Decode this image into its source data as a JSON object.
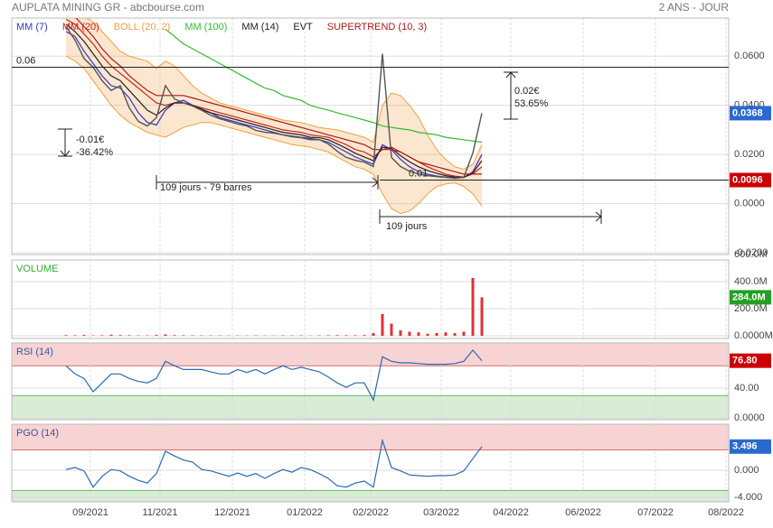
{
  "header": {
    "title": "AUPLATA MINING GR - abcbourse.com",
    "period": "2 ANS - JOUR"
  },
  "chart_data": [
    {
      "type": "line",
      "x": [
        6,
        7,
        8,
        9,
        10,
        11,
        12,
        13,
        14,
        15,
        16,
        17,
        18,
        19,
        20,
        21,
        22,
        23,
        24,
        25,
        26,
        27,
        28,
        29,
        30,
        31,
        32,
        33,
        34,
        35,
        36,
        37,
        38,
        39,
        40,
        41,
        42,
        43,
        44,
        45,
        46,
        47,
        48,
        49,
        50,
        51,
        52
      ],
      "xlim": [
        0,
        79.3
      ],
      "xticks": [
        {
          "value": 8.7,
          "label": "09/2021"
        },
        {
          "value": 16.4,
          "label": "11/2021"
        },
        {
          "value": 24.4,
          "label": "12/2021"
        },
        {
          "value": 32.4,
          "label": "01/2022"
        },
        {
          "value": 39.7,
          "label": "02/2022"
        },
        {
          "value": 47.5,
          "label": "03/2022"
        },
        {
          "value": 55.2,
          "label": "04/2022"
        },
        {
          "value": 63.2,
          "label": "06/2022"
        },
        {
          "value": 71.2,
          "label": "07/2022"
        },
        {
          "value": 79.0,
          "label": "08/2022"
        }
      ],
      "ylim": [
        -0.0207,
        0.0755
      ],
      "yticks": [
        {
          "value": 0.06,
          "label": "0.0600"
        },
        {
          "value": 0.04,
          "label": "0.0400"
        },
        {
          "value": 0.02,
          "label": "0.0200"
        },
        {
          "value": 0,
          "label": "0.0000"
        },
        {
          "value": -0.02,
          "label": "-0.0200"
        }
      ],
      "grid": true,
      "close": [
        0.072,
        0.0665,
        0.059,
        0.0555,
        0.05,
        0.046,
        0.048,
        0.039,
        0.0335,
        0.0316,
        0.035,
        0.048,
        0.0426,
        0.041,
        0.0397,
        0.038,
        0.036,
        0.0346,
        0.0335,
        0.0324,
        0.0316,
        0.0298,
        0.029,
        0.0287,
        0.028,
        0.0272,
        0.0268,
        0.026,
        0.026,
        0.0243,
        0.0213,
        0.0188,
        0.0176,
        0.0169,
        0.0151,
        0.061,
        0.0188,
        0.0151,
        0.0132,
        0.0121,
        0.0114,
        0.011,
        0.0107,
        0.0103,
        0.0107,
        0.0206,
        0.0368
      ],
      "close_color": "#555555",
      "badge_color": "#2a6ad0",
      "series": [
        {
          "name": "MM (7)",
          "color": "#3333cc",
          "values": [
            0.07,
            0.068,
            0.062,
            0.057,
            0.052,
            0.048,
            0.047,
            0.043,
            0.037,
            0.033,
            0.032,
            0.038,
            0.041,
            0.042,
            0.04,
            0.038,
            0.037,
            0.035,
            0.034,
            0.033,
            0.032,
            0.031,
            0.03,
            0.029,
            0.028,
            0.0275,
            0.027,
            0.0265,
            0.026,
            0.025,
            0.023,
            0.021,
            0.019,
            0.0175,
            0.016,
            0.024,
            0.022,
            0.018,
            0.015,
            0.013,
            0.012,
            0.0112,
            0.0108,
            0.0105,
            0.0106,
            0.013,
            0.02
          ]
        },
        {
          "name": "MM (20)",
          "color": "#cc2222",
          "values": [
            0.075,
            0.073,
            0.069,
            0.065,
            0.06,
            0.056,
            0.053,
            0.05,
            0.047,
            0.044,
            0.041,
            0.04,
            0.041,
            0.041,
            0.04,
            0.039,
            0.038,
            0.037,
            0.036,
            0.035,
            0.034,
            0.033,
            0.032,
            0.031,
            0.03,
            0.0295,
            0.029,
            0.028,
            0.0275,
            0.027,
            0.0255,
            0.024,
            0.022,
            0.021,
            0.019,
            0.022,
            0.023,
            0.021,
            0.019,
            0.017,
            0.015,
            0.0135,
            0.012,
            0.0112,
            0.0108,
            0.012,
            0.015
          ]
        },
        {
          "name": "BOLL (20, 2)",
          "color": "#f0a040",
          "upper": [
            0.078,
            0.078,
            0.076,
            0.074,
            0.07,
            0.066,
            0.062,
            0.06,
            0.059,
            0.058,
            0.055,
            0.058,
            0.056,
            0.052,
            0.048,
            0.045,
            0.043,
            0.041,
            0.04,
            0.039,
            0.038,
            0.037,
            0.036,
            0.035,
            0.034,
            0.0335,
            0.033,
            0.032,
            0.031,
            0.0305,
            0.03,
            0.029,
            0.028,
            0.027,
            0.025,
            0.04,
            0.045,
            0.044,
            0.04,
            0.035,
            0.028,
            0.022,
            0.018,
            0.015,
            0.014,
            0.016,
            0.024
          ],
          "lower": [
            0.06,
            0.058,
            0.055,
            0.05,
            0.045,
            0.04,
            0.036,
            0.033,
            0.031,
            0.029,
            0.028,
            0.027,
            0.029,
            0.031,
            0.032,
            0.033,
            0.033,
            0.032,
            0.031,
            0.03,
            0.029,
            0.028,
            0.027,
            0.026,
            0.025,
            0.024,
            0.0235,
            0.023,
            0.022,
            0.021,
            0.019,
            0.017,
            0.015,
            0.014,
            0.012,
            0.004,
            -0.002,
            -0.004,
            -0.003,
            0,
            0.004,
            0.007,
            0.008,
            0.0085,
            0.007,
            0.004,
            -0.001
          ]
        },
        {
          "name": "MM (100)",
          "color": "#33bb33",
          "values": [
            null,
            null,
            null,
            null,
            null,
            null,
            null,
            null,
            null,
            null,
            null,
            0.071,
            0.068,
            0.065,
            0.063,
            0.061,
            0.059,
            0.057,
            0.055,
            0.053,
            0.051,
            0.049,
            0.047,
            0.046,
            0.044,
            0.043,
            0.042,
            0.04,
            0.039,
            0.038,
            0.037,
            0.036,
            0.035,
            0.034,
            0.033,
            0.0316,
            0.031,
            0.0305,
            0.03,
            0.029,
            0.0285,
            0.028,
            0.027,
            0.0265,
            0.026,
            0.0255,
            0.025
          ]
        },
        {
          "name": "MM (14)",
          "color": "#222222",
          "values": [
            0.073,
            0.07,
            0.066,
            0.061,
            0.056,
            0.052,
            0.05,
            0.046,
            0.042,
            0.038,
            0.036,
            0.039,
            0.041,
            0.041,
            0.04,
            0.0385,
            0.037,
            0.036,
            0.035,
            0.034,
            0.033,
            0.032,
            0.031,
            0.03,
            0.029,
            0.0285,
            0.028,
            0.027,
            0.0268,
            0.026,
            0.0243,
            0.0225,
            0.0205,
            0.019,
            0.0175,
            0.023,
            0.0225,
            0.0195,
            0.017,
            0.015,
            0.0135,
            0.0123,
            0.0114,
            0.0108,
            0.0107,
            0.0125,
            0.0175
          ]
        },
        {
          "name": "EVT",
          "color": "#222222"
        },
        {
          "name": "SUPERTREND (10, 3)",
          "color": "#aa1a1a",
          "values": [
            0.078,
            0.076,
            0.072,
            0.068,
            0.063,
            0.059,
            0.056,
            0.052,
            0.049,
            0.046,
            0.044,
            0.044,
            0.044,
            0.044,
            0.043,
            0.042,
            0.041,
            0.04,
            0.039,
            0.038,
            0.037,
            0.036,
            0.035,
            0.034,
            0.033,
            0.032,
            0.031,
            0.03,
            0.029,
            0.028,
            0.027,
            0.026,
            0.025,
            0.024,
            0.022,
            0.022,
            0.022,
            0.021,
            0.019,
            0.017,
            0.016,
            0.015,
            0.014,
            0.013,
            0.012,
            0.012,
            0.012
          ]
        }
      ],
      "hlines": [
        {
          "value": 0.0555,
          "label": "0.06"
        },
        {
          "value": 0.0096,
          "label": "0.01",
          "badge_color": "#cc0000"
        }
      ],
      "annotations": [
        {
          "lines": [
            "-0.01€",
            "-36.42%"
          ]
        },
        {
          "lines": [
            "0.02€",
            "53.65%"
          ]
        },
        {
          "lines": [
            "109 jours - 79 barres"
          ]
        },
        {
          "lines": [
            "109 jours"
          ]
        }
      ]
    },
    {
      "type": "bar",
      "title": "VOLUME",
      "title_color": "#33aa33",
      "color": "#dd3333",
      "badge_color": "#22a022",
      "ylim": [
        -20,
        560
      ],
      "yticks": [
        {
          "value": 0,
          "label": "0.0000M"
        },
        {
          "value": 200,
          "label": "200.0M"
        },
        {
          "value": 400,
          "label": "400.0M"
        },
        {
          "value": 600,
          "label": "600.0M"
        }
      ],
      "values": [
        5,
        4,
        6,
        3,
        4,
        8,
        5,
        4,
        3,
        3,
        6,
        10,
        5,
        4,
        3,
        3,
        3,
        3,
        2,
        3,
        2,
        3,
        2,
        2,
        3,
        3,
        3,
        2,
        3,
        4,
        5,
        4,
        4,
        5,
        20,
        160,
        90,
        40,
        30,
        25,
        15,
        20,
        25,
        20,
        30,
        427,
        284
      ],
      "last_label": "284.0M"
    },
    {
      "type": "line",
      "title": "RSI (14)",
      "title_color": "#3355aa",
      "color": "#2a6ab0",
      "badge_color": "#cc0000",
      "ylim": [
        -2.4,
        100.6
      ],
      "bands": [
        30,
        70
      ],
      "yticks": [
        {
          "value": 40,
          "label": "40.00"
        },
        {
          "value": 0,
          "label": "0.0000"
        }
      ],
      "values": [
        70,
        59,
        53,
        35,
        47,
        59,
        59,
        53,
        49,
        47,
        53,
        76,
        70,
        65,
        65,
        65,
        62,
        59,
        59,
        65,
        61,
        65,
        59,
        65,
        70,
        65,
        68,
        65,
        62,
        55,
        47,
        41,
        47,
        47,
        24,
        82,
        76,
        74,
        74,
        73,
        72,
        72,
        72,
        73,
        76,
        91,
        76.8
      ],
      "last_label": "76.80"
    },
    {
      "type": "line",
      "title": "PGO (14)",
      "title_color": "#3355aa",
      "color": "#2a6ab0",
      "badge_color": "#2a6ad0",
      "ylim": [
        -4.67,
        6.8
      ],
      "bands": [
        -3,
        3
      ],
      "yticks": [
        {
          "value": 0,
          "label": "0.000"
        },
        {
          "value": -4,
          "label": "-4.000"
        }
      ],
      "values": [
        0.1,
        0.4,
        -0.1,
        -2.5,
        -0.9,
        0.1,
        -0.1,
        -0.9,
        -1.5,
        -1.9,
        -0.5,
        2.8,
        2.1,
        1.5,
        1.2,
        0.1,
        -0.1,
        -0.5,
        -0.9,
        -0.4,
        -0.9,
        -0.5,
        -1.2,
        -0.5,
        0.1,
        -0.3,
        0.4,
        0.1,
        -0.5,
        -1.2,
        -2.3,
        -2.5,
        -1.9,
        -1.6,
        -2.5,
        4.4,
        0.4,
        -0.1,
        -0.7,
        -0.8,
        -0.9,
        -0.8,
        -0.8,
        -0.7,
        -0.1,
        1.7,
        3.496
      ]
    }
  ]
}
